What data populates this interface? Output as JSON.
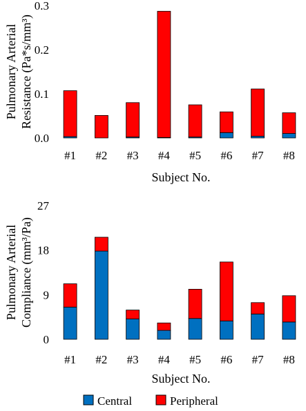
{
  "chart_data": [
    {
      "type": "bar",
      "stacked": true,
      "categories": [
        "#1",
        "#2",
        "#3",
        "#4",
        "#5",
        "#6",
        "#7",
        "#8"
      ],
      "series": [
        {
          "name": "Central",
          "color": "#0070c0",
          "values": [
            0.003,
            0.0,
            0.002,
            0.001,
            0.002,
            0.012,
            0.004,
            0.01
          ]
        },
        {
          "name": "Peripheral",
          "color": "#ff0000",
          "values": [
            0.104,
            0.051,
            0.078,
            0.286,
            0.073,
            0.047,
            0.107,
            0.047
          ]
        }
      ],
      "xlabel": "Subject No.",
      "ylabel_lines": [
        "Pulmonary Arterial",
        "Resistance (Pa*s/mm³)"
      ],
      "ylim": [
        0,
        0.3
      ],
      "yticks": [
        "0.0",
        "0.1",
        "0.2",
        "0.3"
      ],
      "ytick_values": [
        0,
        0.1,
        0.2,
        0.3
      ]
    },
    {
      "type": "bar",
      "stacked": true,
      "categories": [
        "#1",
        "#2",
        "#3",
        "#4",
        "#5",
        "#6",
        "#7",
        "#8"
      ],
      "series": [
        {
          "name": "Central",
          "color": "#0070c0",
          "values": [
            6.5,
            17.8,
            4.1,
            1.8,
            4.2,
            3.7,
            5.1,
            3.5
          ]
        },
        {
          "name": "Peripheral",
          "color": "#ff0000",
          "values": [
            4.7,
            2.8,
            1.8,
            1.5,
            5.9,
            11.9,
            2.3,
            5.3
          ]
        }
      ],
      "xlabel": "Subject No.",
      "ylabel_lines": [
        "Pulmonary Arterial",
        "Compliance (mm³/Pa)"
      ],
      "ylim": [
        0,
        27
      ],
      "yticks": [
        "0",
        "9",
        "18",
        "27"
      ],
      "ytick_values": [
        0,
        9,
        18,
        27
      ]
    }
  ],
  "legend": {
    "items": [
      {
        "label": "Central",
        "color": "#0070c0"
      },
      {
        "label": "Peripheral",
        "color": "#ff0000"
      }
    ]
  }
}
